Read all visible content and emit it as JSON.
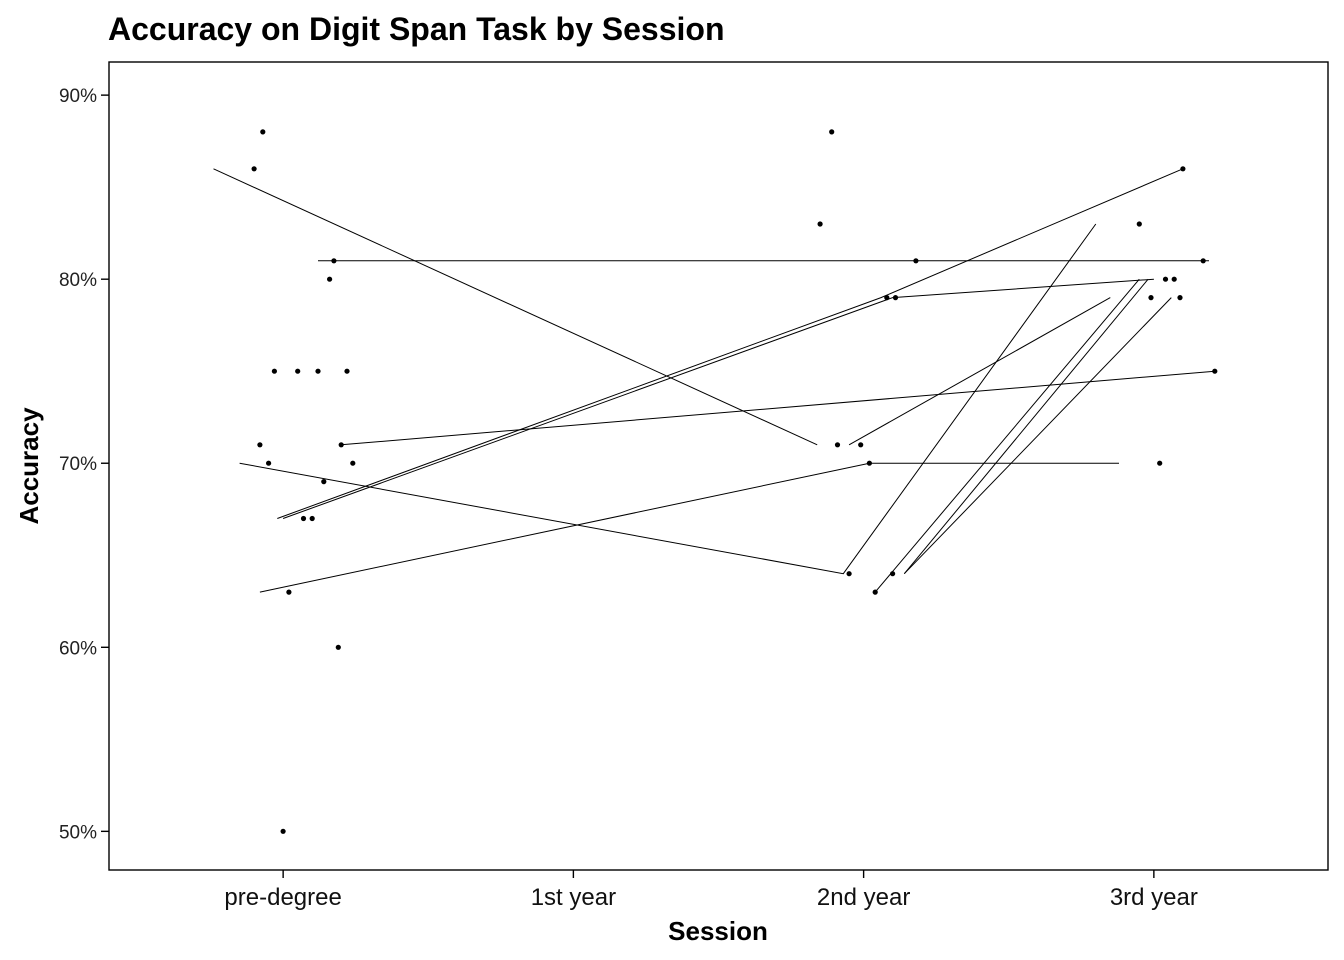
{
  "chart_data": {
    "type": "line",
    "title": "Accuracy on Digit Span Task by Session",
    "xlabel": "Session",
    "ylabel": "Accuracy",
    "categories": [
      "pre-degree",
      "1st year",
      "2nd year",
      "3rd year"
    ],
    "y_ticks": [
      {
        "value": 0.5,
        "label": "50%"
      },
      {
        "value": 0.6,
        "label": "60%"
      },
      {
        "value": 0.7,
        "label": "70%"
      },
      {
        "value": 0.8,
        "label": "80%"
      },
      {
        "value": 0.9,
        "label": "90%"
      }
    ],
    "ylim": [
      0.479,
      0.918
    ],
    "xlim": [
      -0.6,
      3.6
    ],
    "grid": false,
    "legend": "none",
    "points": [
      {
        "x": -0.1,
        "y": 0.86
      },
      {
        "x": -0.07,
        "y": 0.88
      },
      {
        "x": -0.08,
        "y": 0.71
      },
      {
        "x": -0.05,
        "y": 0.7
      },
      {
        "x": -0.03,
        "y": 0.75
      },
      {
        "x": 0.0,
        "y": 0.5
      },
      {
        "x": 0.02,
        "y": 0.63
      },
      {
        "x": 0.05,
        "y": 0.75
      },
      {
        "x": 0.07,
        "y": 0.67
      },
      {
        "x": 0.1,
        "y": 0.67
      },
      {
        "x": 0.12,
        "y": 0.75
      },
      {
        "x": 0.14,
        "y": 0.69
      },
      {
        "x": 0.16,
        "y": 0.8
      },
      {
        "x": 0.175,
        "y": 0.81
      },
      {
        "x": 0.19,
        "y": 0.6
      },
      {
        "x": 0.2,
        "y": 0.71
      },
      {
        "x": 0.22,
        "y": 0.75
      },
      {
        "x": 0.24,
        "y": 0.7
      },
      {
        "x": 1.85,
        "y": 0.83
      },
      {
        "x": 1.89,
        "y": 0.88
      },
      {
        "x": 1.91,
        "y": 0.71
      },
      {
        "x": 1.95,
        "y": 0.64
      },
      {
        "x": 1.99,
        "y": 0.71
      },
      {
        "x": 2.02,
        "y": 0.7
      },
      {
        "x": 2.04,
        "y": 0.63
      },
      {
        "x": 2.08,
        "y": 0.79
      },
      {
        "x": 2.1,
        "y": 0.64
      },
      {
        "x": 2.11,
        "y": 0.79
      },
      {
        "x": 2.18,
        "y": 0.81
      },
      {
        "x": 2.95,
        "y": 0.83
      },
      {
        "x": 2.99,
        "y": 0.79
      },
      {
        "x": 3.02,
        "y": 0.7
      },
      {
        "x": 3.04,
        "y": 0.8
      },
      {
        "x": 3.07,
        "y": 0.8
      },
      {
        "x": 3.09,
        "y": 0.79
      },
      {
        "x": 3.1,
        "y": 0.86
      },
      {
        "x": 3.17,
        "y": 0.81
      },
      {
        "x": 3.21,
        "y": 0.75
      }
    ],
    "lines": [
      {
        "points": [
          {
            "x": -0.24,
            "y": 0.86
          },
          {
            "x": 1.84,
            "y": 0.71
          }
        ]
      },
      {
        "points": [
          {
            "x": 0.12,
            "y": 0.81
          },
          {
            "x": 3.19,
            "y": 0.81
          }
        ]
      },
      {
        "points": [
          {
            "x": -0.15,
            "y": 0.7
          },
          {
            "x": 1.93,
            "y": 0.64
          },
          {
            "x": 2.8,
            "y": 0.83
          }
        ]
      },
      {
        "points": [
          {
            "x": -0.08,
            "y": 0.63
          },
          {
            "x": 2.02,
            "y": 0.7
          },
          {
            "x": 2.88,
            "y": 0.7
          }
        ]
      },
      {
        "points": [
          {
            "x": -0.02,
            "y": 0.67
          },
          {
            "x": 2.06,
            "y": 0.79
          },
          {
            "x": 3.1,
            "y": 0.86
          }
        ]
      },
      {
        "points": [
          {
            "x": 0.0,
            "y": 0.67
          },
          {
            "x": 2.1,
            "y": 0.79
          },
          {
            "x": 3.0,
            "y": 0.8
          }
        ]
      },
      {
        "points": [
          {
            "x": 0.2,
            "y": 0.71
          },
          {
            "x": 3.21,
            "y": 0.75
          }
        ]
      },
      {
        "points": [
          {
            "x": 1.95,
            "y": 0.71
          },
          {
            "x": 2.85,
            "y": 0.79
          }
        ]
      },
      {
        "points": [
          {
            "x": 2.04,
            "y": 0.63
          },
          {
            "x": 2.95,
            "y": 0.8
          }
        ]
      },
      {
        "points": [
          {
            "x": 2.14,
            "y": 0.64
          },
          {
            "x": 2.98,
            "y": 0.8
          }
        ]
      },
      {
        "points": [
          {
            "x": 2.14,
            "y": 0.64
          },
          {
            "x": 3.06,
            "y": 0.79
          }
        ]
      }
    ]
  }
}
